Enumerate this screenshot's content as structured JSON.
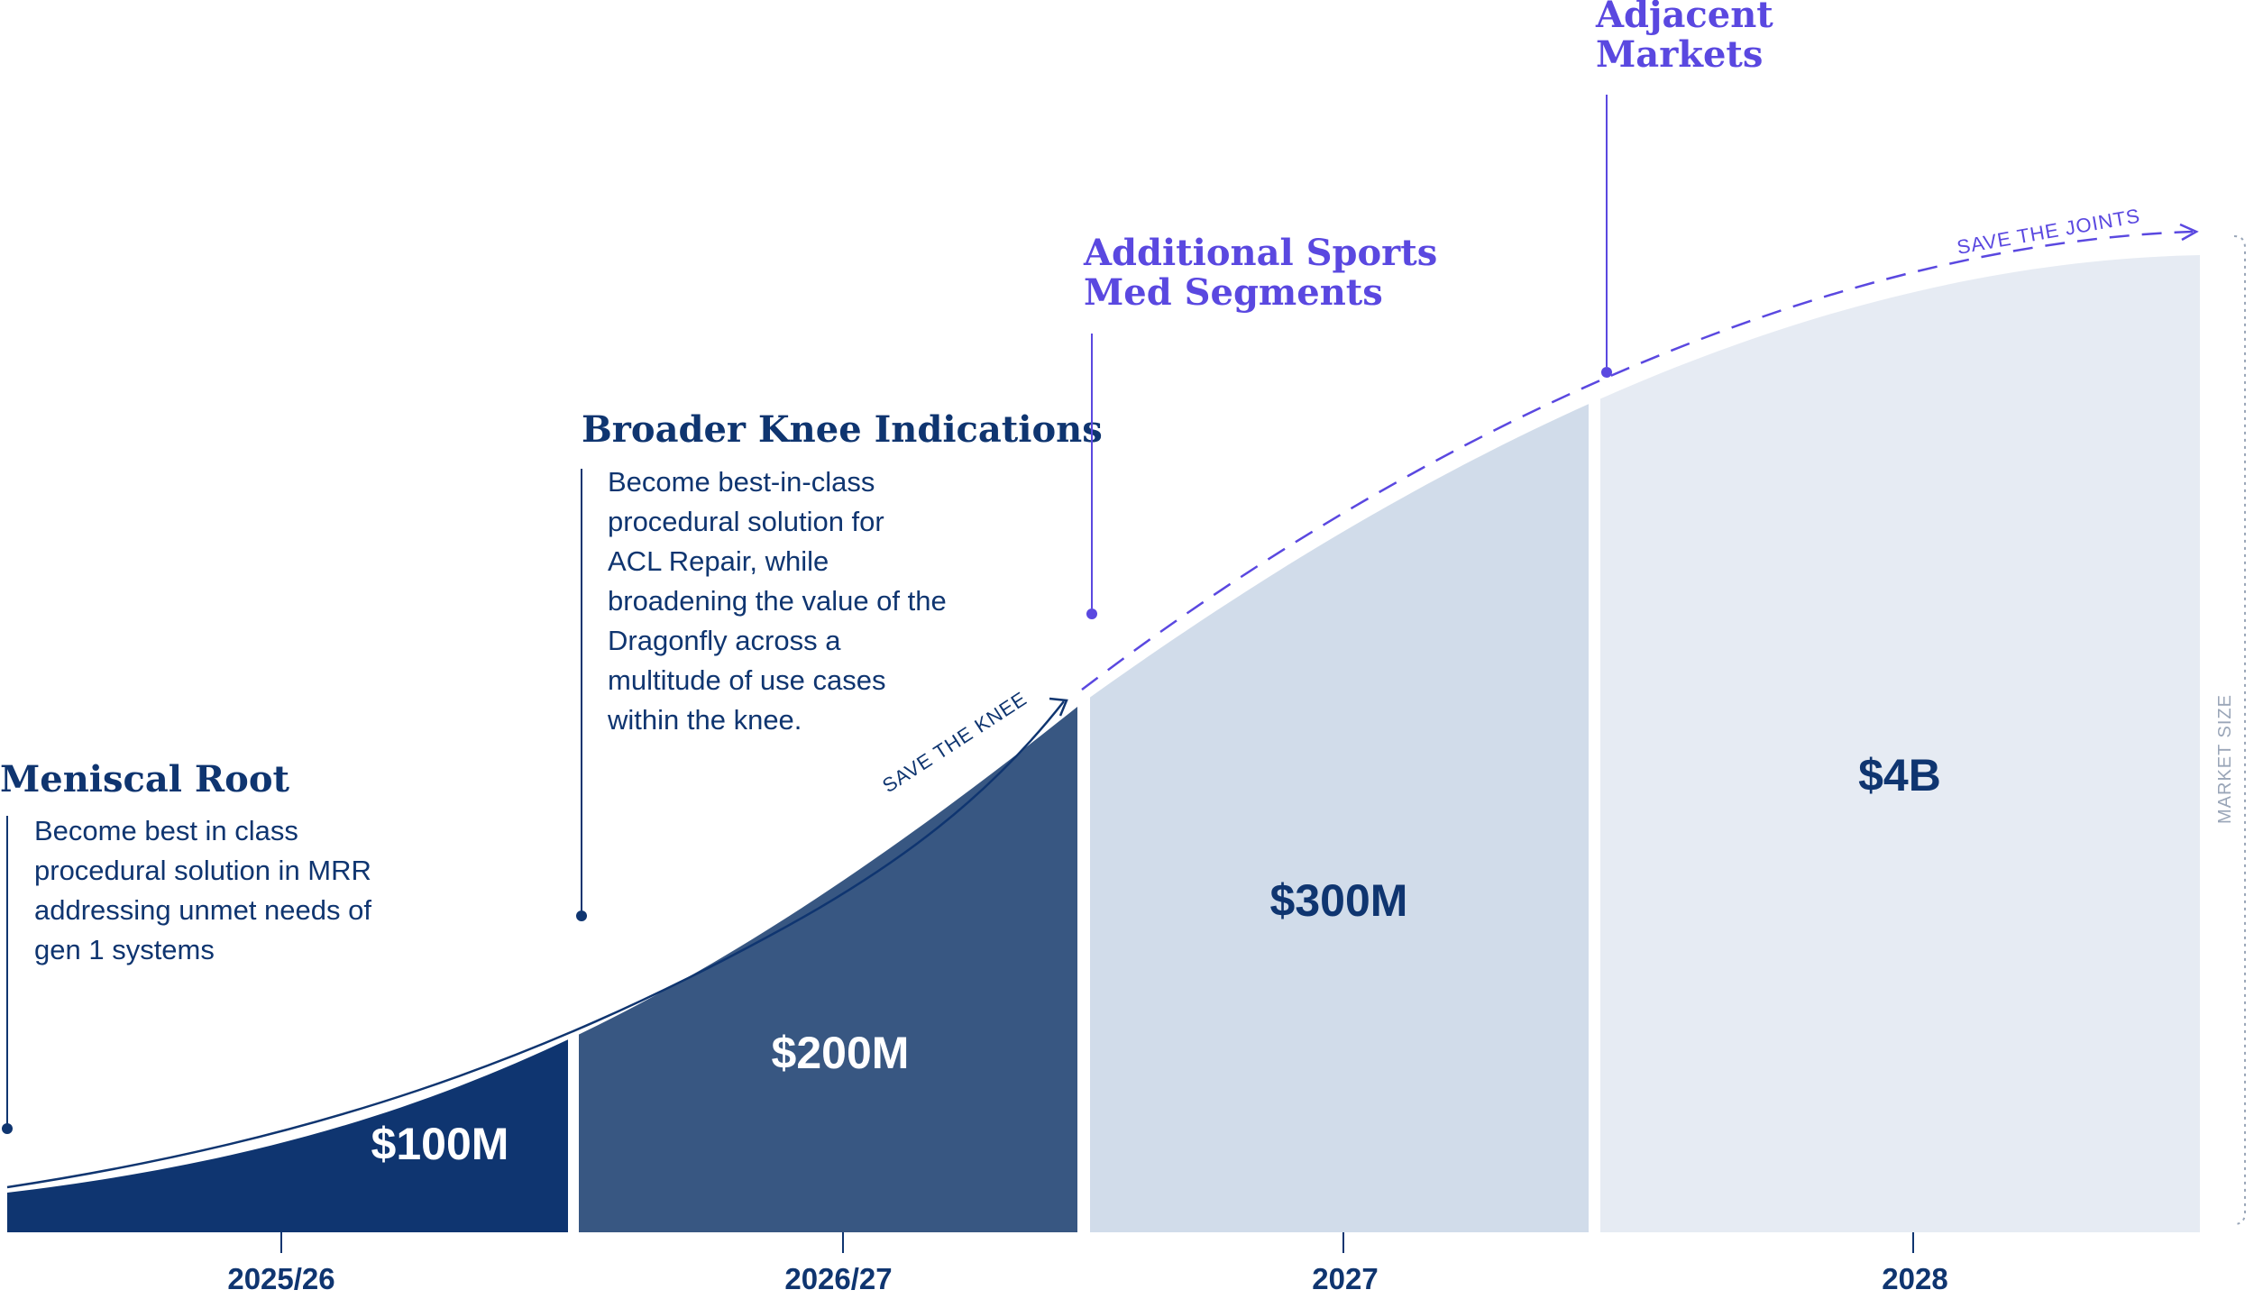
{
  "chart_data": {
    "type": "area",
    "categories": [
      "2025/26",
      "2026/27",
      "2027",
      "2028"
    ],
    "values_label": [
      "$100M",
      "$200M",
      "$300M",
      "$4B"
    ],
    "yaxis_label": "MARKET SIZE",
    "colors": [
      "#0f3570",
      "#385782",
      "#d1dcea",
      "#e6ebf3"
    ],
    "accent_dark": "#0f3570",
    "accent_purple": "#5a48e0",
    "curve_labels": {
      "knee": "SAVE THE KNEE",
      "joints": "SAVE THE JOINTS"
    },
    "annotations": [
      {
        "title": "Meniscal Root",
        "lines": [
          "Become best in class",
          "procedural solution in MRR",
          "addressing unmet needs of",
          "gen 1 systems"
        ]
      },
      {
        "title": "Broader Knee Indications",
        "lines": [
          "Become best-in-class",
          "procedural solution for",
          "ACL Repair, while",
          "broadening the value of the",
          "Dragonfly across a",
          "multitude of use cases",
          "within the knee."
        ]
      },
      {
        "title_lines": [
          "Additional Sports",
          "Med Segments"
        ]
      },
      {
        "title_lines": [
          "Adjacent",
          "Markets"
        ]
      }
    ]
  }
}
